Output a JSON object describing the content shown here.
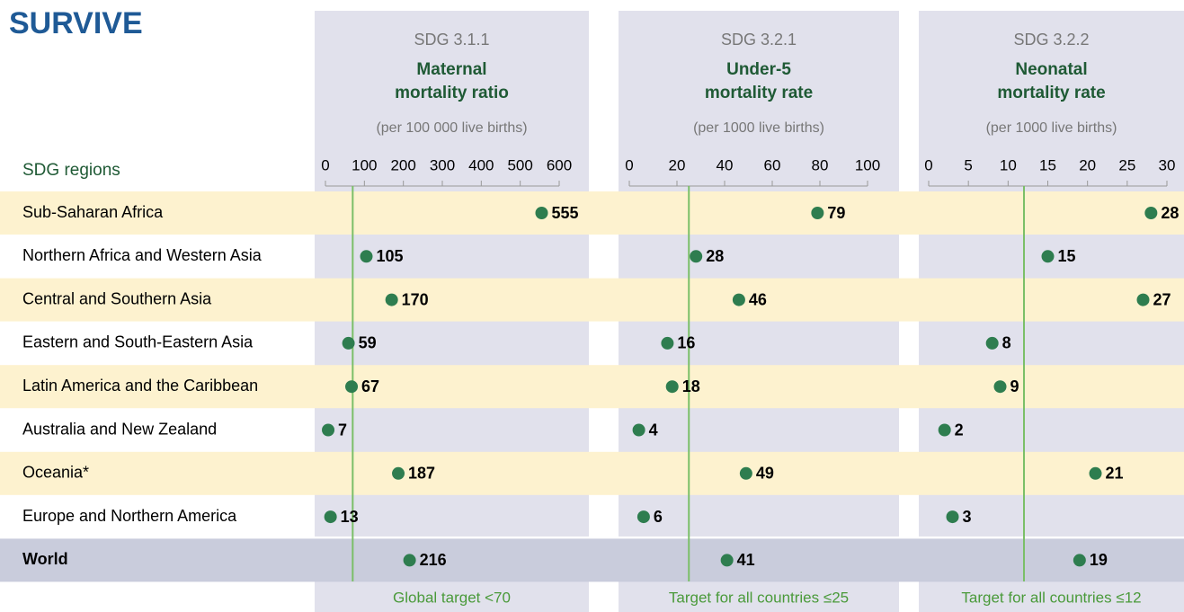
{
  "title": "SURVIVE",
  "row_header": "SDG regions",
  "categories": [
    "Sub-Saharan Africa",
    "Northern Africa and Western Asia",
    "Central and Southern Asia",
    "Eastern and South-Eastern Asia",
    "Latin America and the Caribbean",
    "Australia and New Zealand",
    "Oceania*",
    "Europe and Northern America",
    "World"
  ],
  "chart_data": [
    {
      "type": "dot",
      "code": "SDG 3.1.1",
      "title_lines": [
        "Maternal",
        "mortality ratio"
      ],
      "unit": "(per 100 000 live births)",
      "values": [
        555,
        105,
        170,
        59,
        67,
        7,
        187,
        13,
        216
      ],
      "color": "#2e7d4f",
      "xlim": [
        0,
        600
      ],
      "xticks": [
        0,
        100,
        200,
        300,
        400,
        500,
        600
      ],
      "target": 70,
      "target_label": "Global target <70"
    },
    {
      "type": "dot",
      "code": "SDG 3.2.1",
      "title_lines": [
        "Under-5",
        "mortality rate"
      ],
      "unit": "(per 1000 live births)",
      "values": [
        79,
        28,
        46,
        16,
        18,
        4,
        49,
        6,
        41
      ],
      "color": "#2e7d4f",
      "xlim": [
        0,
        100
      ],
      "xticks": [
        0,
        20,
        40,
        60,
        80,
        100
      ],
      "target": 25,
      "target_label": "Target for all countries ≤25"
    },
    {
      "type": "dot",
      "code": "SDG 3.2.2",
      "title_lines": [
        "Neonatal",
        "mortality rate"
      ],
      "unit": "(per 1000 live births)",
      "values": [
        28,
        15,
        27,
        8,
        9,
        2,
        21,
        3,
        19
      ],
      "color": "#2e7d4f",
      "xlim": [
        0,
        30
      ],
      "xticks": [
        0,
        5,
        10,
        15,
        20,
        25,
        30
      ],
      "target": 12,
      "target_label": "Target for all countries ≤12"
    }
  ]
}
